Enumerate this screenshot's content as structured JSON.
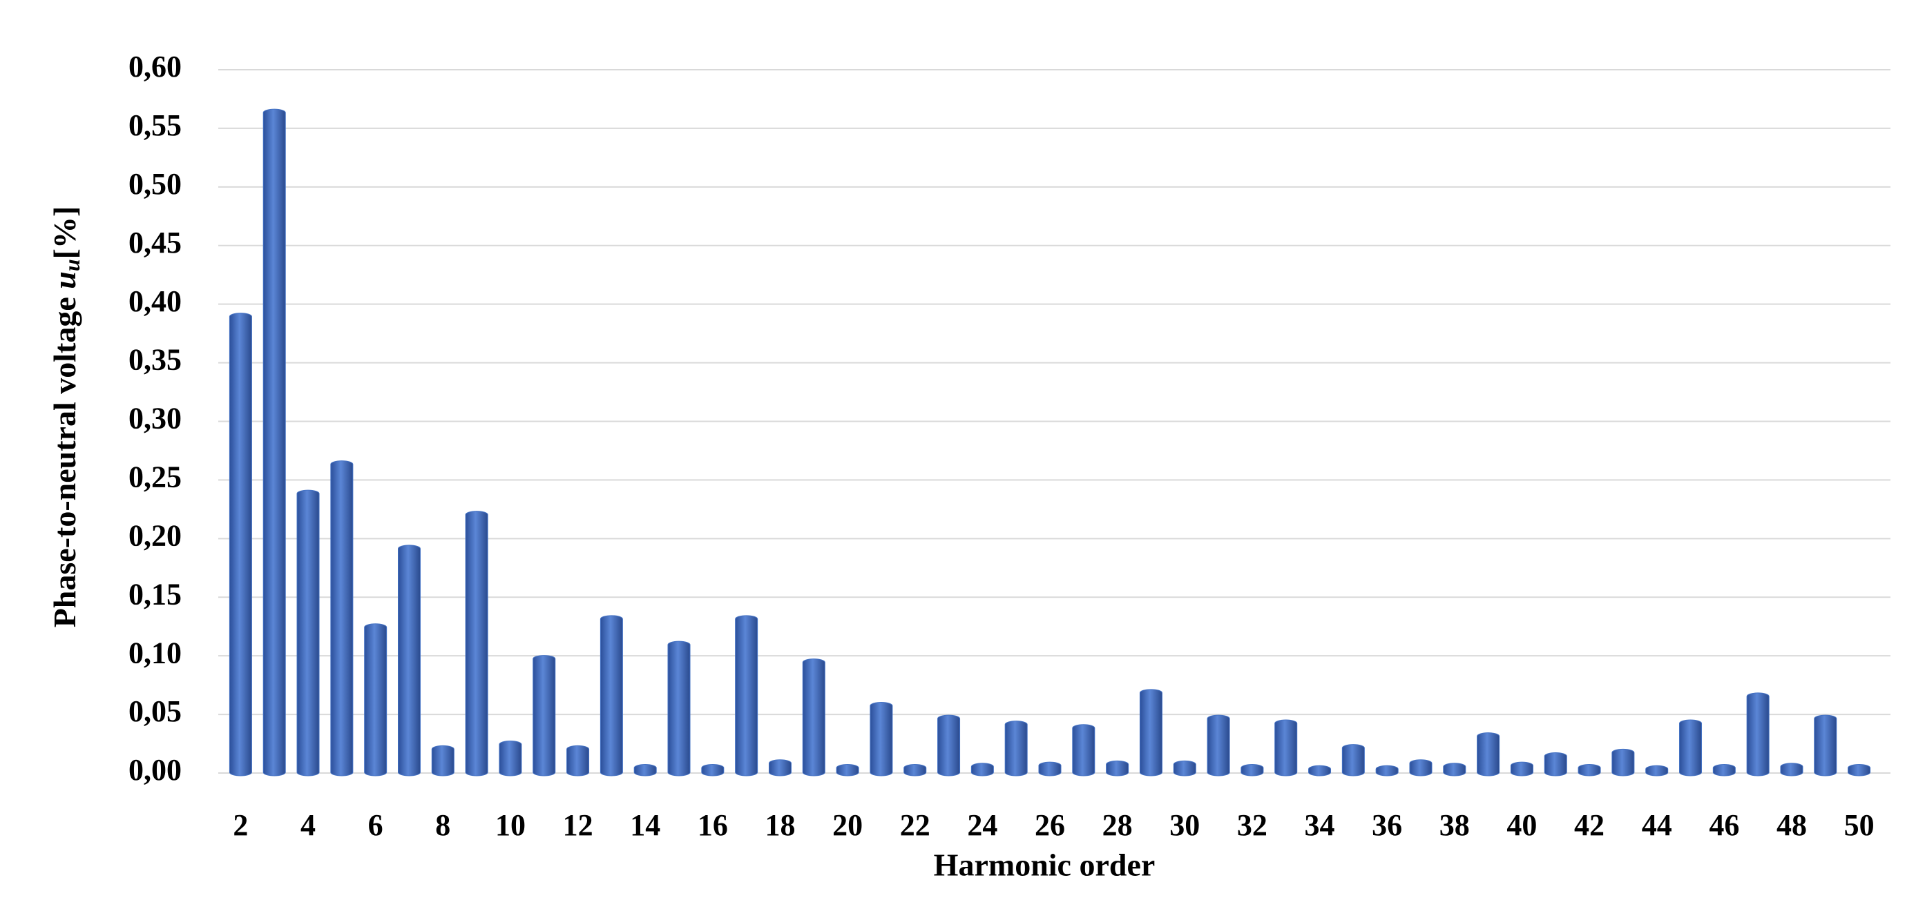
{
  "chart_data": {
    "type": "bar",
    "xlabel": "Harmonic order",
    "ylabel": "Phase-to-neutral voltage",
    "ylabel_symbol": "u",
    "ylabel_subscript": "u",
    "ylabel_unit": "[%]",
    "categories": [
      2,
      null,
      4,
      null,
      6,
      null,
      8,
      null,
      10,
      null,
      12,
      null,
      14,
      null,
      16,
      null,
      18,
      null,
      20,
      null,
      22,
      null,
      24,
      null,
      26,
      null,
      28,
      null,
      30,
      null,
      32,
      null,
      34,
      null,
      36,
      null,
      38,
      null,
      40,
      null,
      42,
      null,
      44,
      null,
      46,
      null,
      48,
      null,
      50
    ],
    "values": [
      0.39,
      0.564,
      0.239,
      0.264,
      0.125,
      0.192,
      0.021,
      0.221,
      0.025,
      0.098,
      0.021,
      0.132,
      0.005,
      0.11,
      0.005,
      0.132,
      0.009,
      0.095,
      0.005,
      0.058,
      0.005,
      0.047,
      0.006,
      0.042,
      0.007,
      0.039,
      0.008,
      0.069,
      0.008,
      0.047,
      0.005,
      0.043,
      0.004,
      0.022,
      0.004,
      0.009,
      0.006,
      0.032,
      0.007,
      0.015,
      0.005,
      0.018,
      0.004,
      0.043,
      0.005,
      0.066,
      0.006,
      0.047,
      0.005
    ],
    "color": "#4472c4",
    "ylim": [
      0,
      0.6
    ],
    "yticks": [
      {
        "value": 0,
        "label": "0,00"
      },
      {
        "value": 0.05,
        "label": "0,05"
      },
      {
        "value": 0.1,
        "label": "0,10"
      },
      {
        "value": 0.15,
        "label": "0,15"
      },
      {
        "value": 0.2,
        "label": "0,20"
      },
      {
        "value": 0.25,
        "label": "0,25"
      },
      {
        "value": 0.3,
        "label": "0,30"
      },
      {
        "value": 0.35,
        "label": "0,35"
      },
      {
        "value": 0.4,
        "label": "0,40"
      },
      {
        "value": 0.45,
        "label": "0,45"
      },
      {
        "value": 0.5,
        "label": "0,50"
      },
      {
        "value": 0.55,
        "label": "0,55"
      },
      {
        "value": 0.6,
        "label": "0,60"
      }
    ],
    "grid": true
  }
}
